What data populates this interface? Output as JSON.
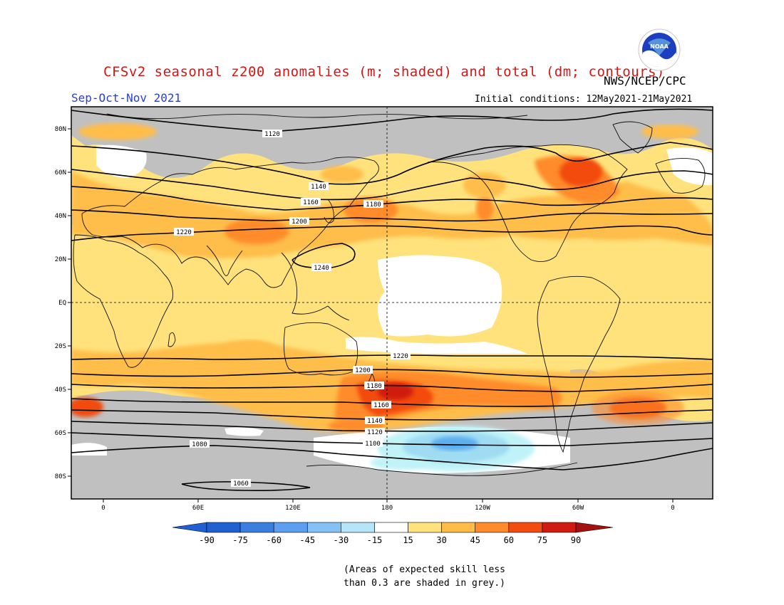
{
  "header": {
    "title": "CFSv2 seasonal z200 anomalies (m; shaded) and total (dm; contours)",
    "agency": "NWS/NCEP/CPC",
    "logo_text": "NOAA",
    "season": "Sep-Oct-Nov 2021",
    "initial_conditions": "Initial conditions: 12May2021-21May2021"
  },
  "map": {
    "lat_labels": [
      "80N",
      "60N",
      "40N",
      "20N",
      "EQ",
      "20S",
      "40S",
      "60S",
      "80S"
    ],
    "lon_labels": [
      "0",
      "60E",
      "120E",
      "180",
      "120W",
      "60W",
      "0"
    ],
    "contour_labels": [
      "1120",
      "1140",
      "1160",
      "1180",
      "1200",
      "1220",
      "1240",
      "1220",
      "1200",
      "1180",
      "1160",
      "1140",
      "1120",
      "1100",
      "1080",
      "1060"
    ],
    "colors": {
      "land_grey": "#c0c0c0",
      "c15": "#ffffff",
      "c30": "#ffe27c",
      "c45": "#ffbd48",
      "c60": "#ff8b2a",
      "c75": "#f24c10",
      "c90": "#d01c10",
      "neg15": "#bff3f8",
      "neg30": "#9fdcf2",
      "neg45": "#5caef0"
    }
  },
  "colorbar": {
    "ticks": [
      "-90",
      "-75",
      "-60",
      "-45",
      "-30",
      "-15",
      "15",
      "30",
      "45",
      "60",
      "75",
      "90"
    ],
    "colors": [
      "#2060d0",
      "#3a7ee0",
      "#5c9ef0",
      "#84c2f6",
      "#b4e6f8",
      "#ffffff",
      "#ffe27c",
      "#ffbd48",
      "#ff8b2a",
      "#f24c10",
      "#d01c10"
    ]
  },
  "footnote": {
    "line1": "(Areas of expected skill less",
    "line2": "than 0.3 are shaded in grey.)"
  }
}
